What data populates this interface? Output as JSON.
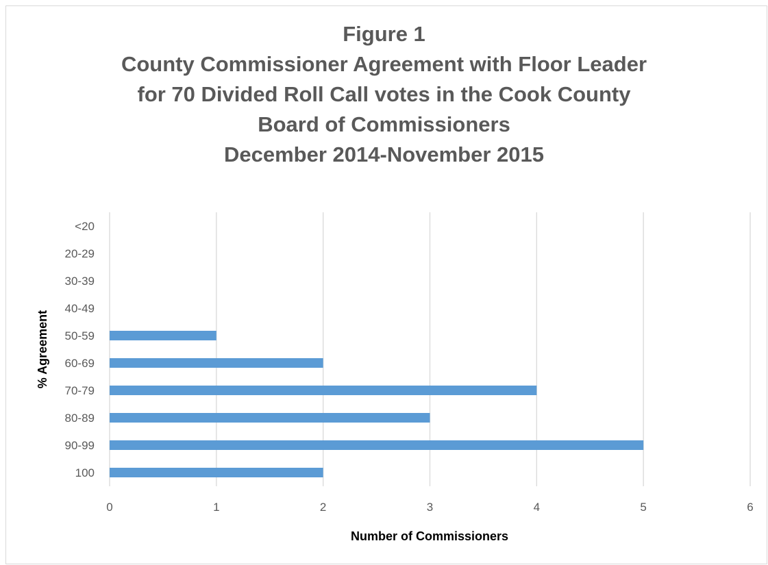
{
  "chart_data": {
    "type": "bar",
    "orientation": "horizontal",
    "title_lines": [
      "Figure 1",
      "County Commissioner Agreement with Floor Leader",
      "for 70 Divided Roll Call votes in the Cook County",
      "Board of Commissioners",
      "December 2014-November 2015"
    ],
    "xlabel": "Number of Commissioners",
    "ylabel": "% Agreement",
    "categories": [
      "<20",
      "20-29",
      "30-39",
      "40-49",
      "50-59",
      "60-69",
      "70-79",
      "80-89",
      "90-99",
      "100"
    ],
    "values": [
      0,
      0,
      0,
      0,
      1,
      2,
      4,
      3,
      5,
      2
    ],
    "xlim": [
      0,
      6
    ],
    "xticks": [
      "0",
      "1",
      "2",
      "3",
      "4",
      "5",
      "6"
    ],
    "grid": "vertical",
    "legend": "none",
    "bar_color": "#5b9bd5",
    "grid_color": "#d9d9d9"
  }
}
